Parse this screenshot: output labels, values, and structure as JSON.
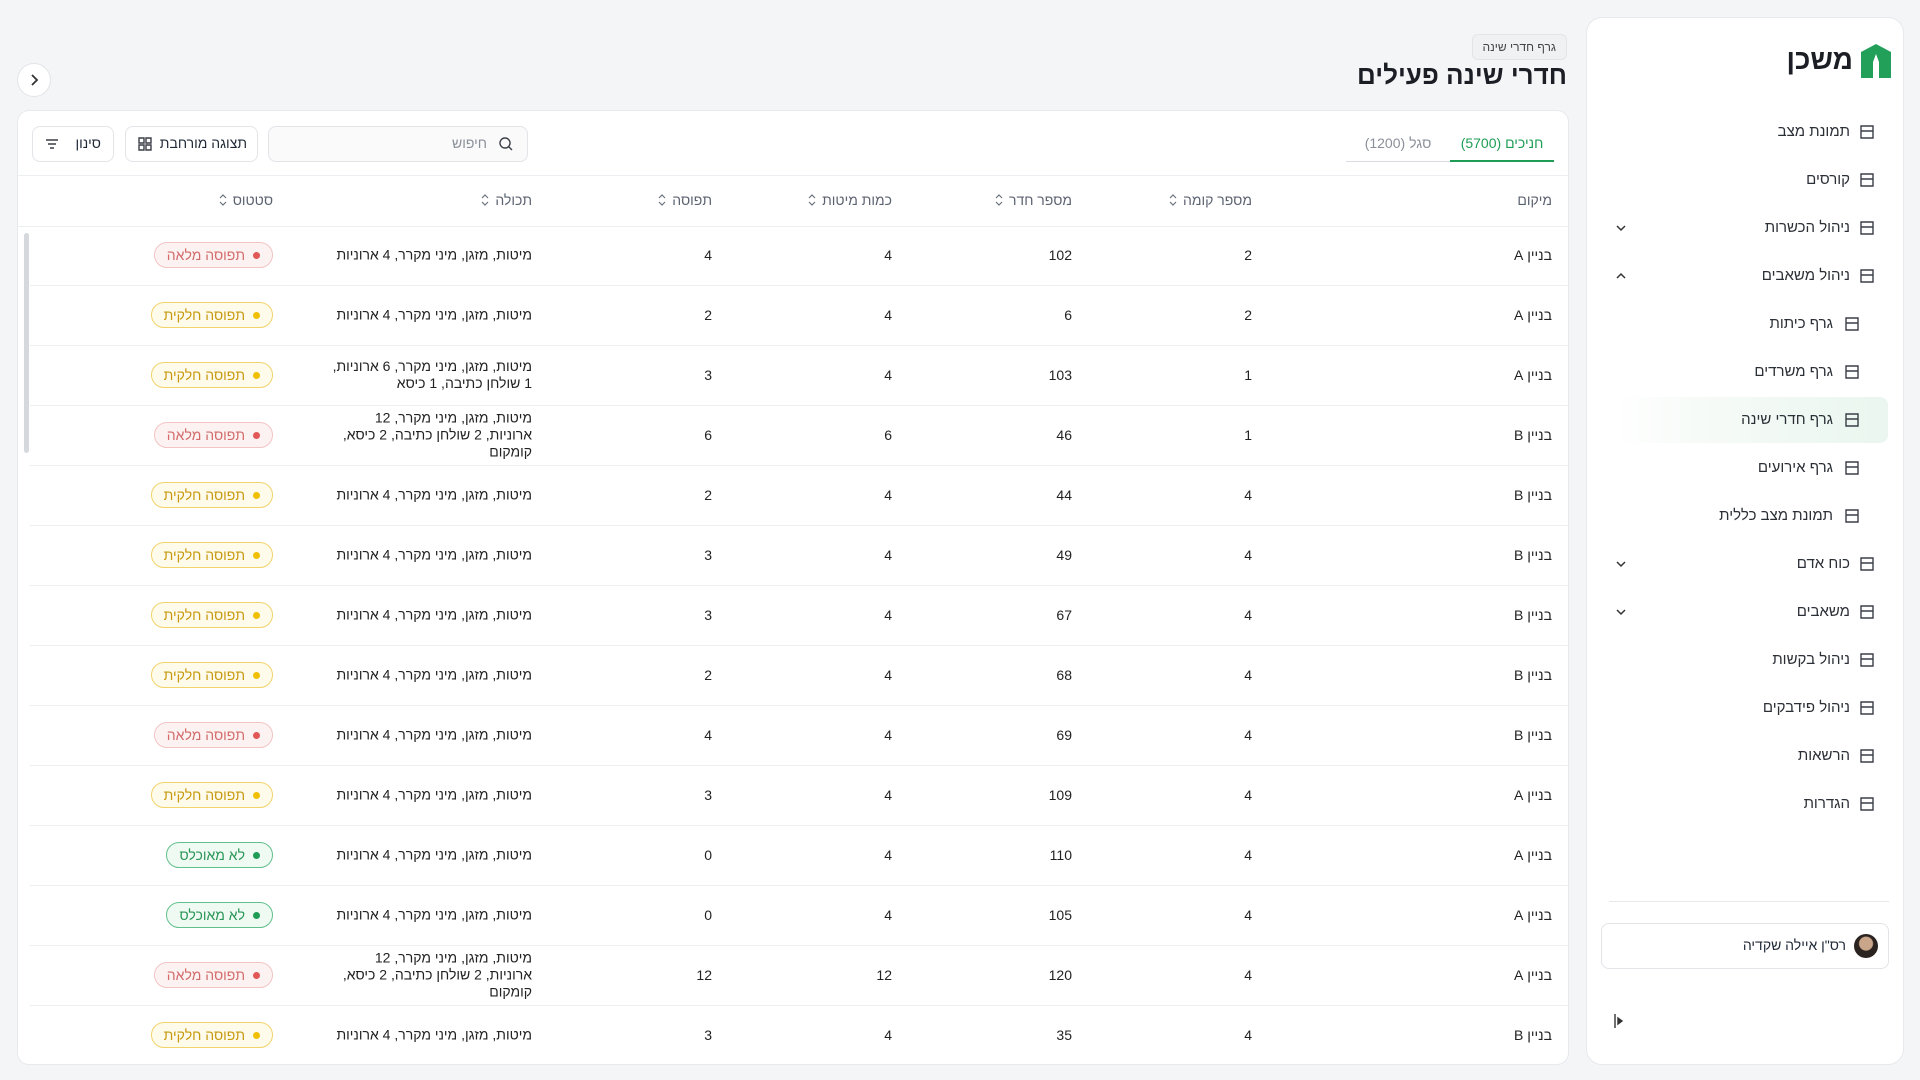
{
  "header": {
    "breadcrumb": "גרף חדרי שינה",
    "title": "חדרי שינה פעילים"
  },
  "toolbar": {
    "tabs": [
      {
        "label": "חניכים (5700)",
        "active": true
      },
      {
        "label": "סגל (1200)",
        "active": false
      }
    ],
    "search_placeholder": "חיפוש",
    "expanded_view": "תצוגה מורחבת",
    "filter": "סינון"
  },
  "table": {
    "columns": [
      "מיקום",
      "מספר קומה",
      "מספר חדר",
      "כמות מיטות",
      "תפוסה",
      "תכולה",
      "סטטוס"
    ],
    "rows": [
      {
        "location": "בניין A",
        "floor": 2,
        "room": 102,
        "beds": 4,
        "occupancy": 4,
        "equipment": "מיטות, מזגן, מיני מקרר, 4 ארוניות",
        "status": "תפוסה מלאה",
        "status_color": "red"
      },
      {
        "location": "בניין A",
        "floor": 2,
        "room": 6,
        "beds": 4,
        "occupancy": 2,
        "equipment": "מיטות, מזגן, מיני מקרר, 4 ארוניות",
        "status": "תפוסה חלקית",
        "status_color": "yellow"
      },
      {
        "location": "בניין A",
        "floor": 1,
        "room": 103,
        "beds": 4,
        "occupancy": 3,
        "equipment": "מיטות, מזגן, מיני מקרר, 6 ארוניות, 1 שולחן כתיבה, 1 כיסא",
        "status": "תפוסה חלקית",
        "status_color": "yellow"
      },
      {
        "location": "בניין B",
        "floor": 1,
        "room": 46,
        "beds": 6,
        "occupancy": 6,
        "equipment": "מיטות, מזגן, מיני מקרר, 12 ארוניות, 2 שולחן כתיבה, 2 כיסא, קומקום",
        "status": "תפוסה מלאה",
        "status_color": "red"
      },
      {
        "location": "בניין B",
        "floor": 4,
        "room": 44,
        "beds": 4,
        "occupancy": 2,
        "equipment": "מיטות, מזגן, מיני מקרר, 4 ארוניות",
        "status": "תפוסה חלקית",
        "status_color": "yellow"
      },
      {
        "location": "בניין B",
        "floor": 4,
        "room": 49,
        "beds": 4,
        "occupancy": 3,
        "equipment": "מיטות, מזגן, מיני מקרר, 4 ארוניות",
        "status": "תפוסה חלקית",
        "status_color": "yellow"
      },
      {
        "location": "בניין B",
        "floor": 4,
        "room": 67,
        "beds": 4,
        "occupancy": 3,
        "equipment": "מיטות, מזגן, מיני מקרר, 4 ארוניות",
        "status": "תפוסה חלקית",
        "status_color": "yellow"
      },
      {
        "location": "בניין B",
        "floor": 4,
        "room": 68,
        "beds": 4,
        "occupancy": 2,
        "equipment": "מיטות, מזגן, מיני מקרר, 4 ארוניות",
        "status": "תפוסה חלקית",
        "status_color": "yellow"
      },
      {
        "location": "בניין B",
        "floor": 4,
        "room": 69,
        "beds": 4,
        "occupancy": 4,
        "equipment": "מיטות, מזגן, מיני מקרר, 4 ארוניות",
        "status": "תפוסה מלאה",
        "status_color": "red"
      },
      {
        "location": "בניין A",
        "floor": 4,
        "room": 109,
        "beds": 4,
        "occupancy": 3,
        "equipment": "מיטות, מזגן, מיני מקרר, 4 ארוניות",
        "status": "תפוסה חלקית",
        "status_color": "yellow"
      },
      {
        "location": "בניין A",
        "floor": 4,
        "room": 110,
        "beds": 4,
        "occupancy": 0,
        "equipment": "מיטות, מזגן, מיני מקרר, 4 ארוניות",
        "status": "לא מאוכלס",
        "status_color": "green"
      },
      {
        "location": "בניין A",
        "floor": 4,
        "room": 105,
        "beds": 4,
        "occupancy": 0,
        "equipment": "מיטות, מזגן, מיני מקרר, 4 ארוניות",
        "status": "לא מאוכלס",
        "status_color": "green"
      },
      {
        "location": "בניין A",
        "floor": 4,
        "room": 120,
        "beds": 12,
        "occupancy": 12,
        "equipment": "מיטות, מזגן, מיני מקרר, 12 ארוניות, 2 שולחן כתיבה, 2 כיסא, קומקום",
        "status": "תפוסה מלאה",
        "status_color": "red"
      },
      {
        "location": "בניין B",
        "floor": 4,
        "room": 35,
        "beds": 4,
        "occupancy": 3,
        "equipment": "מיטות, מזגן, מיני מקרר, 4 ארוניות",
        "status": "תפוסה חלקית",
        "status_color": "yellow"
      }
    ]
  },
  "sidebar": {
    "logo": "משכן",
    "nav": [
      {
        "label": "תמונת מצב"
      },
      {
        "label": "קורסים"
      },
      {
        "label": "ניהול הכשרות",
        "chevron": "down"
      },
      {
        "label": "ניהול משאבים",
        "chevron": "up"
      },
      {
        "label": "גרף כיתות",
        "sub": true
      },
      {
        "label": "גרף משרדים",
        "sub": true
      },
      {
        "label": "גרף חדרי שינה",
        "sub": true,
        "active": true
      },
      {
        "label": "גרף אירועים",
        "sub": true
      },
      {
        "label": "תמונת מצב כללית",
        "sub": true
      },
      {
        "label": "כוח אדם",
        "chevron": "down"
      },
      {
        "label": "משאבים",
        "chevron": "down"
      },
      {
        "label": "ניהול בקשות"
      },
      {
        "label": "ניהול פידבקים"
      },
      {
        "label": "הרשאות"
      },
      {
        "label": "הגדרות"
      }
    ],
    "user": "רס\"ן איילה שקדיה"
  }
}
